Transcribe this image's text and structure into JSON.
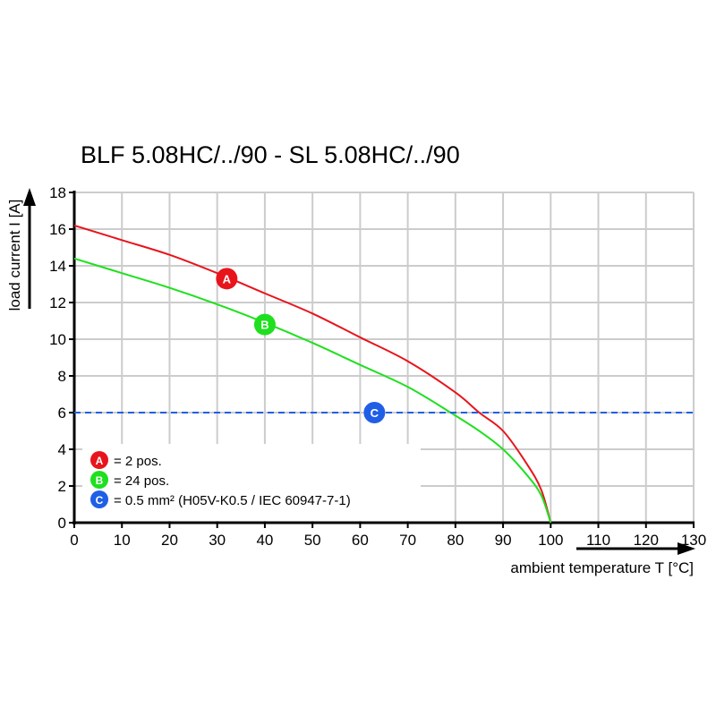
{
  "chart_data": {
    "type": "line",
    "title": "BLF 5.08HC/../90 - SL 5.08HC/../90",
    "xlabel": "ambient temperature T [°C]",
    "ylabel": "load current I [A]",
    "xlim": [
      0,
      130
    ],
    "ylim": [
      0,
      18
    ],
    "xticks": [
      "0",
      "10",
      "20",
      "30",
      "40",
      "50",
      "60",
      "70",
      "80",
      "90",
      "100",
      "110",
      "120",
      "130"
    ],
    "yticks": [
      "0",
      "2",
      "4",
      "6",
      "8",
      "10",
      "12",
      "14",
      "16",
      "18"
    ],
    "grid": true,
    "legend_position": "bottom-left",
    "series": [
      {
        "marker": "A",
        "name": "= 2 pos.",
        "color": "#e8141c",
        "style": "solid",
        "x": [
          0,
          10,
          20,
          30,
          40,
          50,
          60,
          70,
          80,
          85,
          90,
          95,
          98,
          100
        ],
        "y": [
          16.2,
          15.4,
          14.6,
          13.6,
          12.5,
          11.4,
          10.1,
          8.8,
          7.1,
          6.0,
          5.0,
          3.2,
          1.8,
          0
        ],
        "label_at": [
          32,
          13.3
        ]
      },
      {
        "marker": "B",
        "name": "= 24 pos.",
        "color": "#1ee01e",
        "style": "solid",
        "x": [
          0,
          10,
          20,
          30,
          40,
          50,
          60,
          70,
          79,
          85,
          90,
          95,
          98,
          100
        ],
        "y": [
          14.4,
          13.6,
          12.8,
          11.9,
          10.9,
          9.8,
          8.6,
          7.4,
          6.0,
          5.0,
          4.0,
          2.6,
          1.5,
          0
        ],
        "label_at": [
          40,
          10.8
        ]
      },
      {
        "marker": "C",
        "name": "= 0.5 mm² (H05V-K0.5 / IEC 60947-7-1)",
        "color": "#1f5fe6",
        "style": "dashed",
        "x": [
          0,
          130
        ],
        "y": [
          6,
          6
        ],
        "label_at": [
          63,
          6
        ]
      }
    ]
  }
}
